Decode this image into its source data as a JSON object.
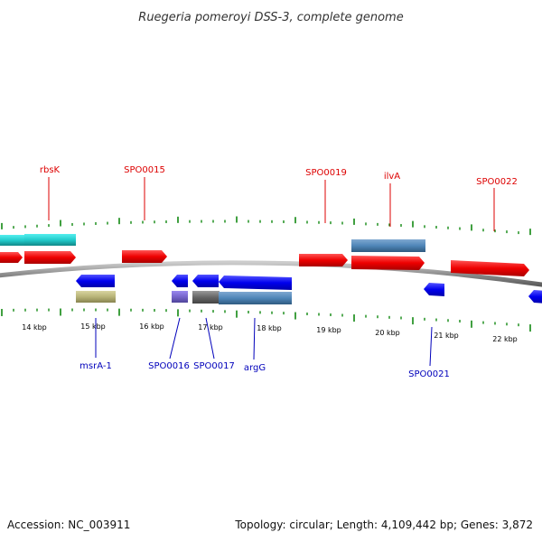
{
  "title": "Ruegeria pomeroyi DSS-3, complete genome",
  "footer": {
    "accession": "Accession: NC_003911",
    "summary": "Topology: circular; Length: 4,109,442 bp; Genes: 3,872"
  },
  "scale_labels": [
    "14 kbp",
    "15 kbp",
    "16 kbp",
    "17 kbp",
    "18 kbp",
    "19 kbp",
    "20 kbp",
    "21 kbp",
    "22 kbp"
  ],
  "genes_forward": [
    {
      "id": "gene-rbsK-partial",
      "color": "#ff0000"
    },
    {
      "id": "gene-rbsK",
      "label": "rbsK",
      "color": "#ff0000"
    },
    {
      "id": "gene-SPO0015",
      "label": "SPO0015",
      "color": "#ff0000"
    },
    {
      "id": "gene-SPO0019",
      "label": "SPO0019",
      "color": "#ff0000"
    },
    {
      "id": "gene-ilvA",
      "label": "ilvA",
      "color": "#ff0000"
    },
    {
      "id": "gene-SPO0022",
      "label": "SPO0022",
      "color": "#ff0000"
    }
  ],
  "genes_reverse": [
    {
      "id": "gene-msrA-1",
      "label": "msrA-1",
      "color": "#0000ff"
    },
    {
      "id": "gene-SPO0016",
      "label": "SPO0016",
      "color": "#0000ff"
    },
    {
      "id": "gene-SPO0017",
      "label": "SPO0017",
      "color": "#0000ff"
    },
    {
      "id": "gene-argG",
      "label": "argG",
      "color": "#0000ff"
    },
    {
      "id": "gene-SPO0021",
      "label": "SPO0021",
      "color": "#0000ff"
    },
    {
      "id": "gene-edge",
      "color": "#0000ff"
    }
  ],
  "feature_colors": {
    "cyan": "#22cccc",
    "steel": "#4f86b8",
    "khaki": "#b8b478",
    "violet": "#7766cc",
    "gray": "#666666",
    "backbone": "#888888",
    "tick": "#118811"
  }
}
